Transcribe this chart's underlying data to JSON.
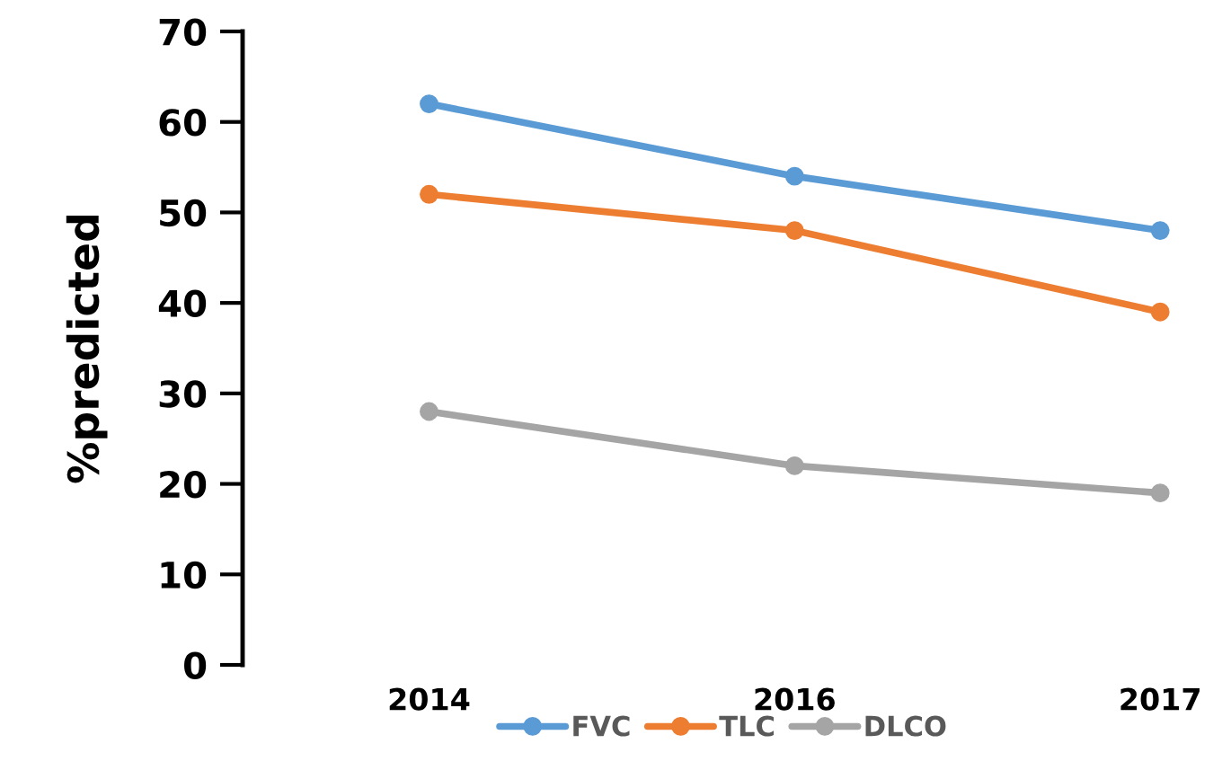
{
  "chart_data": {
    "type": "line",
    "ylabel": "%predicted",
    "categories": [
      "2014",
      "2016",
      "2017"
    ],
    "series": [
      {
        "name": "FVC",
        "color": "#5b9bd5",
        "values": [
          62,
          54,
          48
        ]
      },
      {
        "name": "TLC",
        "color": "#ed7d31",
        "values": [
          52,
          48,
          39
        ]
      },
      {
        "name": "DLCO",
        "color": "#a5a5a5",
        "values": [
          28,
          22,
          19
        ]
      }
    ],
    "ylim": [
      0,
      70
    ],
    "yticks": [
      0,
      10,
      20,
      30,
      40,
      50,
      60,
      70
    ],
    "marker": "circle",
    "line_style": "solid",
    "grid": false,
    "legend": "bottom"
  }
}
